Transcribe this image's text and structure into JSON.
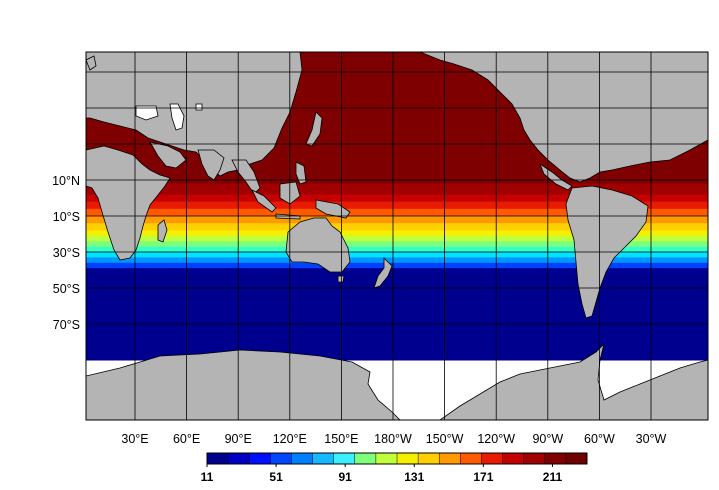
{
  "map": {
    "projection": "cylindrical-equidistant",
    "central_longitude": 180,
    "land_color": "#b4b4b4",
    "lake_color": "#ffffff",
    "grid_color": "#000000",
    "lat_labels": [
      "10°N",
      "10°S",
      "30°S",
      "50°S",
      "70°S"
    ],
    "lon_labels": [
      "30°E",
      "60°E",
      "90°E",
      "120°E",
      "150°E",
      "180°W",
      "150°W",
      "120°W",
      "90°W",
      "60°W",
      "30°W"
    ],
    "field_bands": [
      {
        "from_lat": 90,
        "to_lat": 8,
        "color": "#7f0000"
      },
      {
        "from_lat": 8,
        "to_lat": 2,
        "color": "#a00000"
      },
      {
        "from_lat": 2,
        "to_lat": -2,
        "color": "#c40000"
      },
      {
        "from_lat": -2,
        "to_lat": -6,
        "color": "#e81a00"
      },
      {
        "from_lat": -6,
        "to_lat": -10,
        "color": "#ff5a00"
      },
      {
        "from_lat": -10,
        "to_lat": -14,
        "color": "#ff9a00"
      },
      {
        "from_lat": -14,
        "to_lat": -18,
        "color": "#ffcf00"
      },
      {
        "from_lat": -18,
        "to_lat": -21,
        "color": "#f4f000"
      },
      {
        "from_lat": -21,
        "to_lat": -24,
        "color": "#c0ff3e"
      },
      {
        "from_lat": -24,
        "to_lat": -27,
        "color": "#7dff7b"
      },
      {
        "from_lat": -27,
        "to_lat": -30,
        "color": "#33ffc6"
      },
      {
        "from_lat": -30,
        "to_lat": -33,
        "color": "#00e4ff"
      },
      {
        "from_lat": -33,
        "to_lat": -36,
        "color": "#0096ff"
      },
      {
        "from_lat": -36,
        "to_lat": -39,
        "color": "#0040ff"
      },
      {
        "from_lat": -39,
        "to_lat": -90,
        "color": "#00008f"
      }
    ]
  },
  "colorbar": {
    "labels": [
      "11",
      "51",
      "91",
      "131",
      "171",
      "211"
    ],
    "min": 11,
    "max": 231,
    "colors": [
      "#00008f",
      "#0000c4",
      "#0010ff",
      "#0046ff",
      "#0080ff",
      "#16b8ff",
      "#3cefff",
      "#7dff7b",
      "#c0ff3e",
      "#f4f000",
      "#ffcf00",
      "#ff9a00",
      "#ff5a00",
      "#e81a00",
      "#c40000",
      "#a00000",
      "#800000",
      "#6e0000"
    ]
  }
}
